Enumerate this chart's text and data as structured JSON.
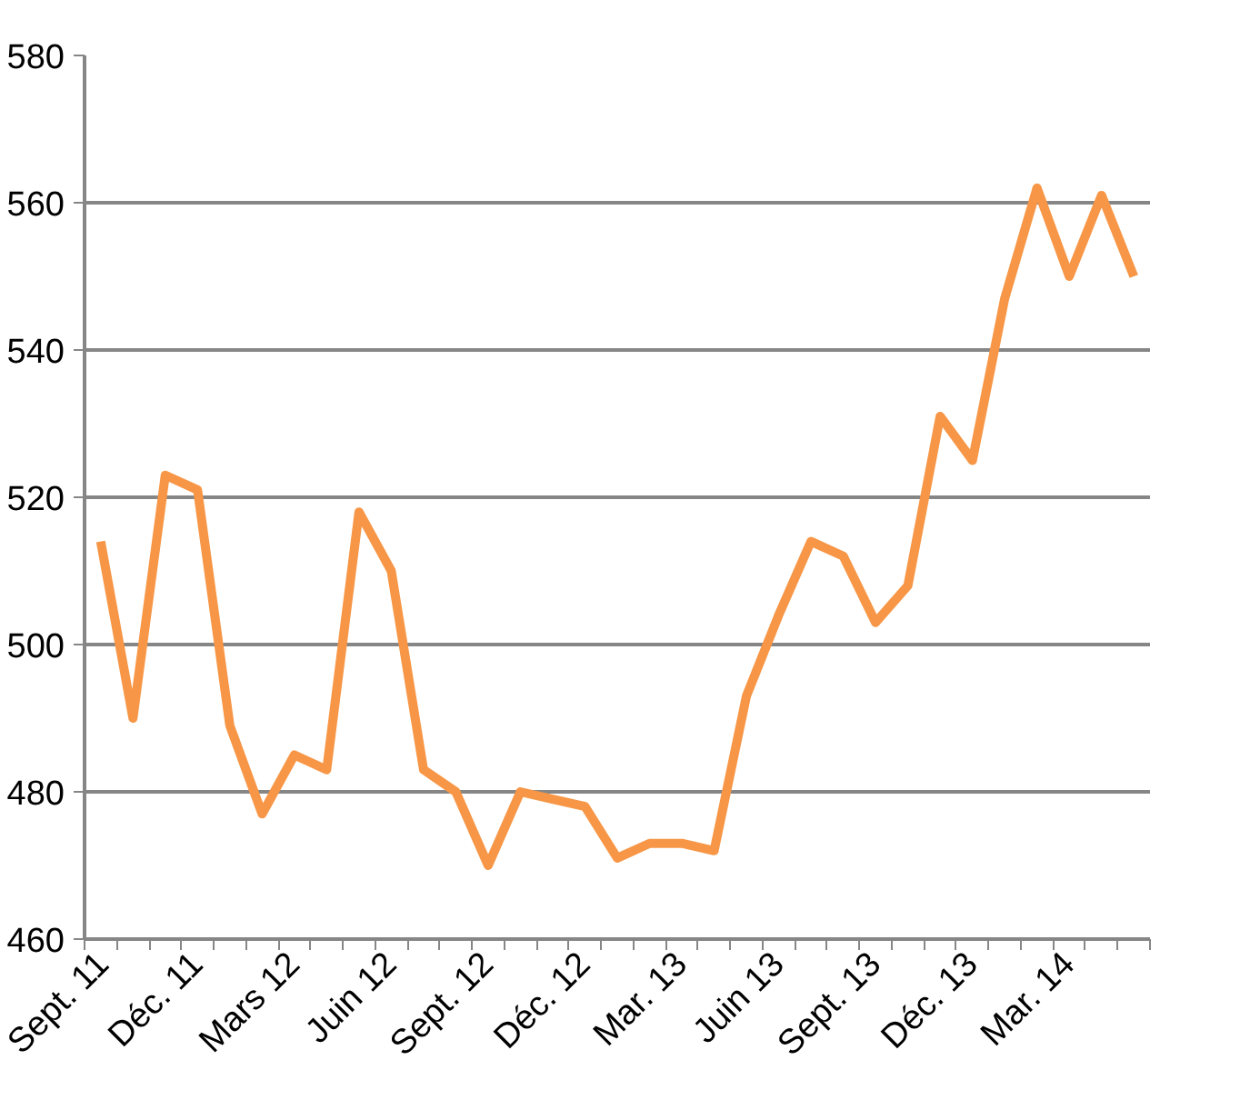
{
  "chart_data": {
    "type": "line",
    "categories": [
      "Sept. 11",
      null,
      null,
      "Déc. 11",
      null,
      null,
      "Mars 12",
      null,
      null,
      "Juin 12",
      null,
      null,
      "Sept. 12",
      null,
      null,
      "Déc. 12",
      null,
      null,
      "Mar. 13",
      null,
      null,
      "Juin 13",
      null,
      null,
      "Sept. 13",
      null,
      null,
      "Déc. 13",
      null,
      null,
      "Mar. 14",
      null,
      null
    ],
    "series": [
      {
        "color": "#f79646",
        "values": [
          514,
          490,
          523,
          521,
          489,
          477,
          485,
          483,
          518,
          510,
          483,
          480,
          470,
          480,
          479,
          478,
          471,
          473,
          473,
          472,
          493,
          504,
          514,
          512,
          503,
          508,
          531,
          525,
          547,
          562,
          550,
          561,
          550
        ]
      }
    ],
    "ylim": [
      460,
      580
    ],
    "yticks": [
      460,
      480,
      500,
      520,
      540,
      560,
      580
    ],
    "grid": "y",
    "marker": "none",
    "line_style": "solid"
  }
}
